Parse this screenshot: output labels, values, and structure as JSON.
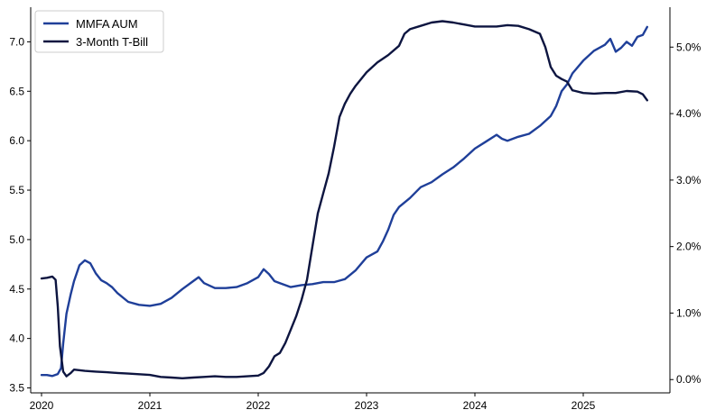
{
  "chart_data": {
    "type": "line",
    "x_ticks": [
      "2020",
      "2021",
      "2022",
      "2023",
      "2024",
      "2025"
    ],
    "xlim": [
      2019.9,
      2025.8
    ],
    "left_axis": {
      "ylim": [
        3.45,
        7.35
      ],
      "ticks": [
        "3.5",
        "4.0",
        "4.5",
        "5.0",
        "5.5",
        "6.0",
        "6.5",
        "7.0"
      ]
    },
    "right_axis": {
      "ylim": [
        -0.2,
        5.6
      ],
      "ticks": [
        "0.0%",
        "1.0%",
        "2.0%",
        "3.0%",
        "4.0%",
        "5.0%"
      ]
    },
    "legend_position": "top-left",
    "grid": false,
    "series": [
      {
        "name": "MMFA AUM",
        "axis": "left",
        "color": "#1f3f99",
        "points": [
          [
            2020.0,
            3.63
          ],
          [
            2020.05,
            3.63
          ],
          [
            2020.1,
            3.62
          ],
          [
            2020.15,
            3.64
          ],
          [
            2020.18,
            3.7
          ],
          [
            2020.2,
            3.95
          ],
          [
            2020.23,
            4.25
          ],
          [
            2020.27,
            4.45
          ],
          [
            2020.3,
            4.58
          ],
          [
            2020.35,
            4.74
          ],
          [
            2020.4,
            4.79
          ],
          [
            2020.45,
            4.76
          ],
          [
            2020.5,
            4.66
          ],
          [
            2020.55,
            4.59
          ],
          [
            2020.6,
            4.56
          ],
          [
            2020.65,
            4.52
          ],
          [
            2020.7,
            4.46
          ],
          [
            2020.8,
            4.37
          ],
          [
            2020.9,
            4.34
          ],
          [
            2021.0,
            4.33
          ],
          [
            2021.1,
            4.35
          ],
          [
            2021.2,
            4.41
          ],
          [
            2021.3,
            4.5
          ],
          [
            2021.4,
            4.58
          ],
          [
            2021.45,
            4.62
          ],
          [
            2021.5,
            4.56
          ],
          [
            2021.6,
            4.51
          ],
          [
            2021.7,
            4.51
          ],
          [
            2021.8,
            4.52
          ],
          [
            2021.9,
            4.56
          ],
          [
            2022.0,
            4.62
          ],
          [
            2022.05,
            4.7
          ],
          [
            2022.1,
            4.65
          ],
          [
            2022.15,
            4.58
          ],
          [
            2022.2,
            4.56
          ],
          [
            2022.3,
            4.52
          ],
          [
            2022.4,
            4.54
          ],
          [
            2022.5,
            4.55
          ],
          [
            2022.6,
            4.57
          ],
          [
            2022.7,
            4.57
          ],
          [
            2022.8,
            4.6
          ],
          [
            2022.9,
            4.69
          ],
          [
            2023.0,
            4.82
          ],
          [
            2023.1,
            4.88
          ],
          [
            2023.15,
            4.98
          ],
          [
            2023.2,
            5.1
          ],
          [
            2023.25,
            5.25
          ],
          [
            2023.3,
            5.33
          ],
          [
            2023.4,
            5.42
          ],
          [
            2023.5,
            5.53
          ],
          [
            2023.6,
            5.58
          ],
          [
            2023.7,
            5.66
          ],
          [
            2023.8,
            5.73
          ],
          [
            2023.9,
            5.82
          ],
          [
            2024.0,
            5.92
          ],
          [
            2024.1,
            5.99
          ],
          [
            2024.2,
            6.06
          ],
          [
            2024.25,
            6.02
          ],
          [
            2024.3,
            6.0
          ],
          [
            2024.4,
            6.04
          ],
          [
            2024.5,
            6.07
          ],
          [
            2024.6,
            6.15
          ],
          [
            2024.7,
            6.25
          ],
          [
            2024.75,
            6.35
          ],
          [
            2024.8,
            6.5
          ],
          [
            2024.85,
            6.57
          ],
          [
            2024.9,
            6.68
          ],
          [
            2025.0,
            6.81
          ],
          [
            2025.1,
            6.91
          ],
          [
            2025.2,
            6.97
          ],
          [
            2025.25,
            7.03
          ],
          [
            2025.3,
            6.9
          ],
          [
            2025.35,
            6.94
          ],
          [
            2025.4,
            7.0
          ],
          [
            2025.45,
            6.96
          ],
          [
            2025.5,
            7.05
          ],
          [
            2025.55,
            7.07
          ],
          [
            2025.59,
            7.15
          ]
        ]
      },
      {
        "name": "3-Month T-Bill",
        "axis": "right",
        "color": "#0d1540",
        "points": [
          [
            2020.0,
            1.52
          ],
          [
            2020.05,
            1.53
          ],
          [
            2020.1,
            1.55
          ],
          [
            2020.13,
            1.5
          ],
          [
            2020.15,
            1.1
          ],
          [
            2020.17,
            0.5
          ],
          [
            2020.2,
            0.12
          ],
          [
            2020.23,
            0.05
          ],
          [
            2020.27,
            0.1
          ],
          [
            2020.3,
            0.15
          ],
          [
            2020.4,
            0.13
          ],
          [
            2020.5,
            0.12
          ],
          [
            2020.6,
            0.11
          ],
          [
            2020.7,
            0.1
          ],
          [
            2020.8,
            0.09
          ],
          [
            2020.9,
            0.08
          ],
          [
            2021.0,
            0.07
          ],
          [
            2021.1,
            0.04
          ],
          [
            2021.2,
            0.03
          ],
          [
            2021.3,
            0.02
          ],
          [
            2021.4,
            0.03
          ],
          [
            2021.5,
            0.04
          ],
          [
            2021.6,
            0.05
          ],
          [
            2021.7,
            0.04
          ],
          [
            2021.8,
            0.04
          ],
          [
            2021.9,
            0.05
          ],
          [
            2022.0,
            0.06
          ],
          [
            2022.05,
            0.1
          ],
          [
            2022.1,
            0.2
          ],
          [
            2022.15,
            0.35
          ],
          [
            2022.2,
            0.4
          ],
          [
            2022.25,
            0.55
          ],
          [
            2022.3,
            0.75
          ],
          [
            2022.35,
            0.95
          ],
          [
            2022.4,
            1.2
          ],
          [
            2022.45,
            1.5
          ],
          [
            2022.5,
            2.0
          ],
          [
            2022.55,
            2.5
          ],
          [
            2022.6,
            2.8
          ],
          [
            2022.65,
            3.1
          ],
          [
            2022.7,
            3.5
          ],
          [
            2022.75,
            3.95
          ],
          [
            2022.8,
            4.15
          ],
          [
            2022.85,
            4.3
          ],
          [
            2022.9,
            4.42
          ],
          [
            2023.0,
            4.62
          ],
          [
            2023.1,
            4.77
          ],
          [
            2023.2,
            4.88
          ],
          [
            2023.3,
            5.02
          ],
          [
            2023.35,
            5.2
          ],
          [
            2023.4,
            5.27
          ],
          [
            2023.5,
            5.32
          ],
          [
            2023.6,
            5.37
          ],
          [
            2023.7,
            5.39
          ],
          [
            2023.8,
            5.37
          ],
          [
            2023.9,
            5.34
          ],
          [
            2024.0,
            5.31
          ],
          [
            2024.1,
            5.31
          ],
          [
            2024.2,
            5.31
          ],
          [
            2024.3,
            5.33
          ],
          [
            2024.4,
            5.32
          ],
          [
            2024.5,
            5.27
          ],
          [
            2024.6,
            5.2
          ],
          [
            2024.65,
            5.0
          ],
          [
            2024.7,
            4.7
          ],
          [
            2024.75,
            4.57
          ],
          [
            2024.8,
            4.52
          ],
          [
            2024.85,
            4.48
          ],
          [
            2024.9,
            4.35
          ],
          [
            2025.0,
            4.31
          ],
          [
            2025.1,
            4.3
          ],
          [
            2025.2,
            4.31
          ],
          [
            2025.3,
            4.31
          ],
          [
            2025.4,
            4.34
          ],
          [
            2025.5,
            4.33
          ],
          [
            2025.55,
            4.29
          ],
          [
            2025.59,
            4.2
          ]
        ]
      }
    ]
  }
}
